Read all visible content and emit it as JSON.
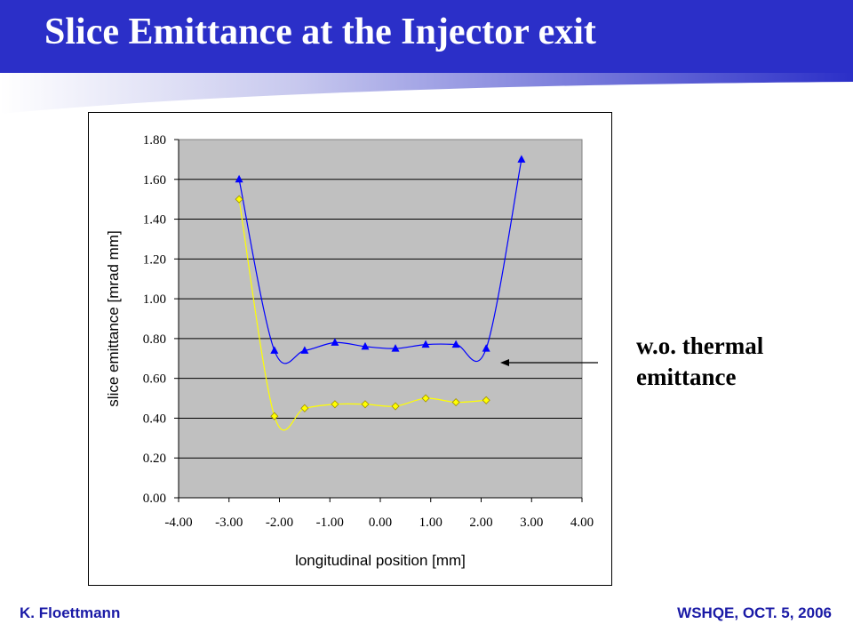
{
  "slide": {
    "title": "Slice Emittance at the Injector exit",
    "annotation_line1": "w.o. thermal",
    "annotation_line2": "emittance",
    "footer_left": "K. Floettmann",
    "footer_right": "WSHQE, OCT. 5, 2006"
  },
  "colors": {
    "header": "#2b2fc8",
    "plot_background": "#c0c0c0",
    "series_with_thermal": "#0000ff",
    "series_without_thermal": "#ffff00",
    "marker_yellow_fill": "#ffff00",
    "marker_yellow_stroke": "#a09000"
  },
  "chart_data": {
    "type": "scatter",
    "xlabel": "longitudinal position  [mm]",
    "ylabel": "slice emittance [mrad mm]",
    "xlim": [
      -4.0,
      4.0
    ],
    "ylim": [
      0.0,
      1.8
    ],
    "x_ticks": [
      "-4.00",
      "-3.00",
      "-2.00",
      "-1.00",
      "0.00",
      "1.00",
      "2.00",
      "3.00",
      "4.00"
    ],
    "y_ticks": [
      "0.00",
      "0.20",
      "0.40",
      "0.60",
      "0.80",
      "1.00",
      "1.20",
      "1.40",
      "1.60",
      "1.80"
    ],
    "grid": "horizontal",
    "legend": "none",
    "series": [
      {
        "marker": "triangle",
        "x": [
          -2.8,
          -2.1,
          -1.5,
          -0.9,
          -0.3,
          0.3,
          0.9,
          1.5,
          2.1,
          2.8
        ],
        "y": [
          1.6,
          0.74,
          0.74,
          0.78,
          0.76,
          0.75,
          0.77,
          0.77,
          0.75,
          1.7
        ]
      },
      {
        "marker": "diamond",
        "x": [
          -2.8,
          -2.1,
          -1.5,
          -0.9,
          -0.3,
          0.3,
          0.9,
          1.5,
          2.1
        ],
        "y": [
          1.5,
          0.41,
          0.45,
          0.47,
          0.47,
          0.46,
          0.5,
          0.48,
          0.49
        ]
      }
    ]
  }
}
